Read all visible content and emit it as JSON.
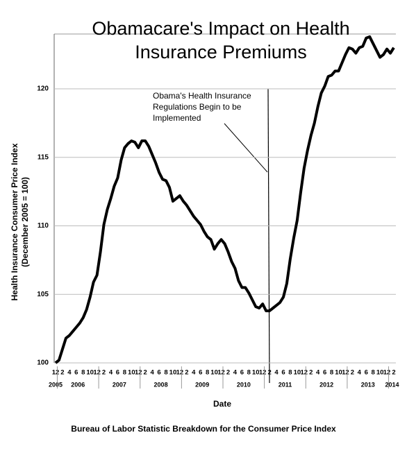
{
  "chart_data": {
    "type": "line",
    "title": "Obamacare's Impact on Health Insurance Premiums",
    "ylabel": [
      "Health Insurance Consumer Price Index",
      "(December 2005 = 100)"
    ],
    "xlabel": "Date",
    "footer": "Bureau of Labor Statistic Breakdown for the Consumer Price Index",
    "annotation": [
      "Obama's Health Insurance",
      "Regulations Begin to be",
      "Implemented"
    ],
    "categories": [
      "12",
      null,
      "2",
      null,
      "4",
      null,
      "6",
      null,
      "8",
      null,
      "10",
      null,
      "12",
      null,
      "2",
      null,
      "4",
      null,
      "6",
      null,
      "8",
      null,
      "10",
      null,
      "12",
      null,
      "2",
      null,
      "4",
      null,
      "6",
      null,
      "8",
      null,
      "10",
      null,
      "12",
      null,
      "2",
      null,
      "4",
      null,
      "6",
      null,
      "8",
      null,
      "10",
      null,
      "12",
      null,
      "2",
      null,
      "4",
      null,
      "6",
      null,
      "8",
      null,
      "10",
      null,
      "12",
      null,
      "2",
      null,
      "4",
      null,
      "6",
      null,
      "8",
      null,
      "10",
      null,
      "12",
      null,
      "2",
      null,
      "4",
      null,
      "6",
      null,
      "8",
      null,
      "10",
      null,
      "12",
      null,
      "2",
      null,
      "4",
      null,
      "6",
      null,
      "8",
      null,
      "10",
      null,
      "12",
      null,
      "2"
    ],
    "years": [
      "2005",
      "2006",
      "2007",
      "2008",
      "2009",
      "2010",
      "2011",
      "2012",
      "2013",
      "2014"
    ],
    "values": [
      100.0,
      100.2,
      101.0,
      101.8,
      102.0,
      102.3,
      102.6,
      102.9,
      103.3,
      103.9,
      104.8,
      105.9,
      106.4,
      108.1,
      110.1,
      111.2,
      112.0,
      112.9,
      113.5,
      114.8,
      115.7,
      116.0,
      116.2,
      116.1,
      115.7,
      116.2,
      116.2,
      115.8,
      115.2,
      114.6,
      113.9,
      113.4,
      113.3,
      112.8,
      111.8,
      112.0,
      112.2,
      111.8,
      111.5,
      111.1,
      110.7,
      110.4,
      110.1,
      109.6,
      109.2,
      109.0,
      108.3,
      108.7,
      109.0,
      108.7,
      108.1,
      107.4,
      106.9,
      106.0,
      105.5,
      105.5,
      105.1,
      104.6,
      104.1,
      104.0,
      104.3,
      103.8,
      103.8,
      104.0,
      104.2,
      104.4,
      104.8,
      105.8,
      107.6,
      109.1,
      110.4,
      112.4,
      114.2,
      115.5,
      116.6,
      117.5,
      118.7,
      119.7,
      120.2,
      120.9,
      121.0,
      121.3,
      121.3,
      121.9,
      122.5,
      123.0,
      122.9,
      122.6,
      123.0,
      123.1,
      123.7,
      123.8,
      123.3,
      122.8,
      122.3,
      122.5,
      122.9,
      122.6,
      123.0
    ],
    "color": "#000000",
    "ylim": [
      100,
      124
    ],
    "yticks": [
      100,
      105,
      110,
      115,
      120
    ],
    "grid": true
  }
}
